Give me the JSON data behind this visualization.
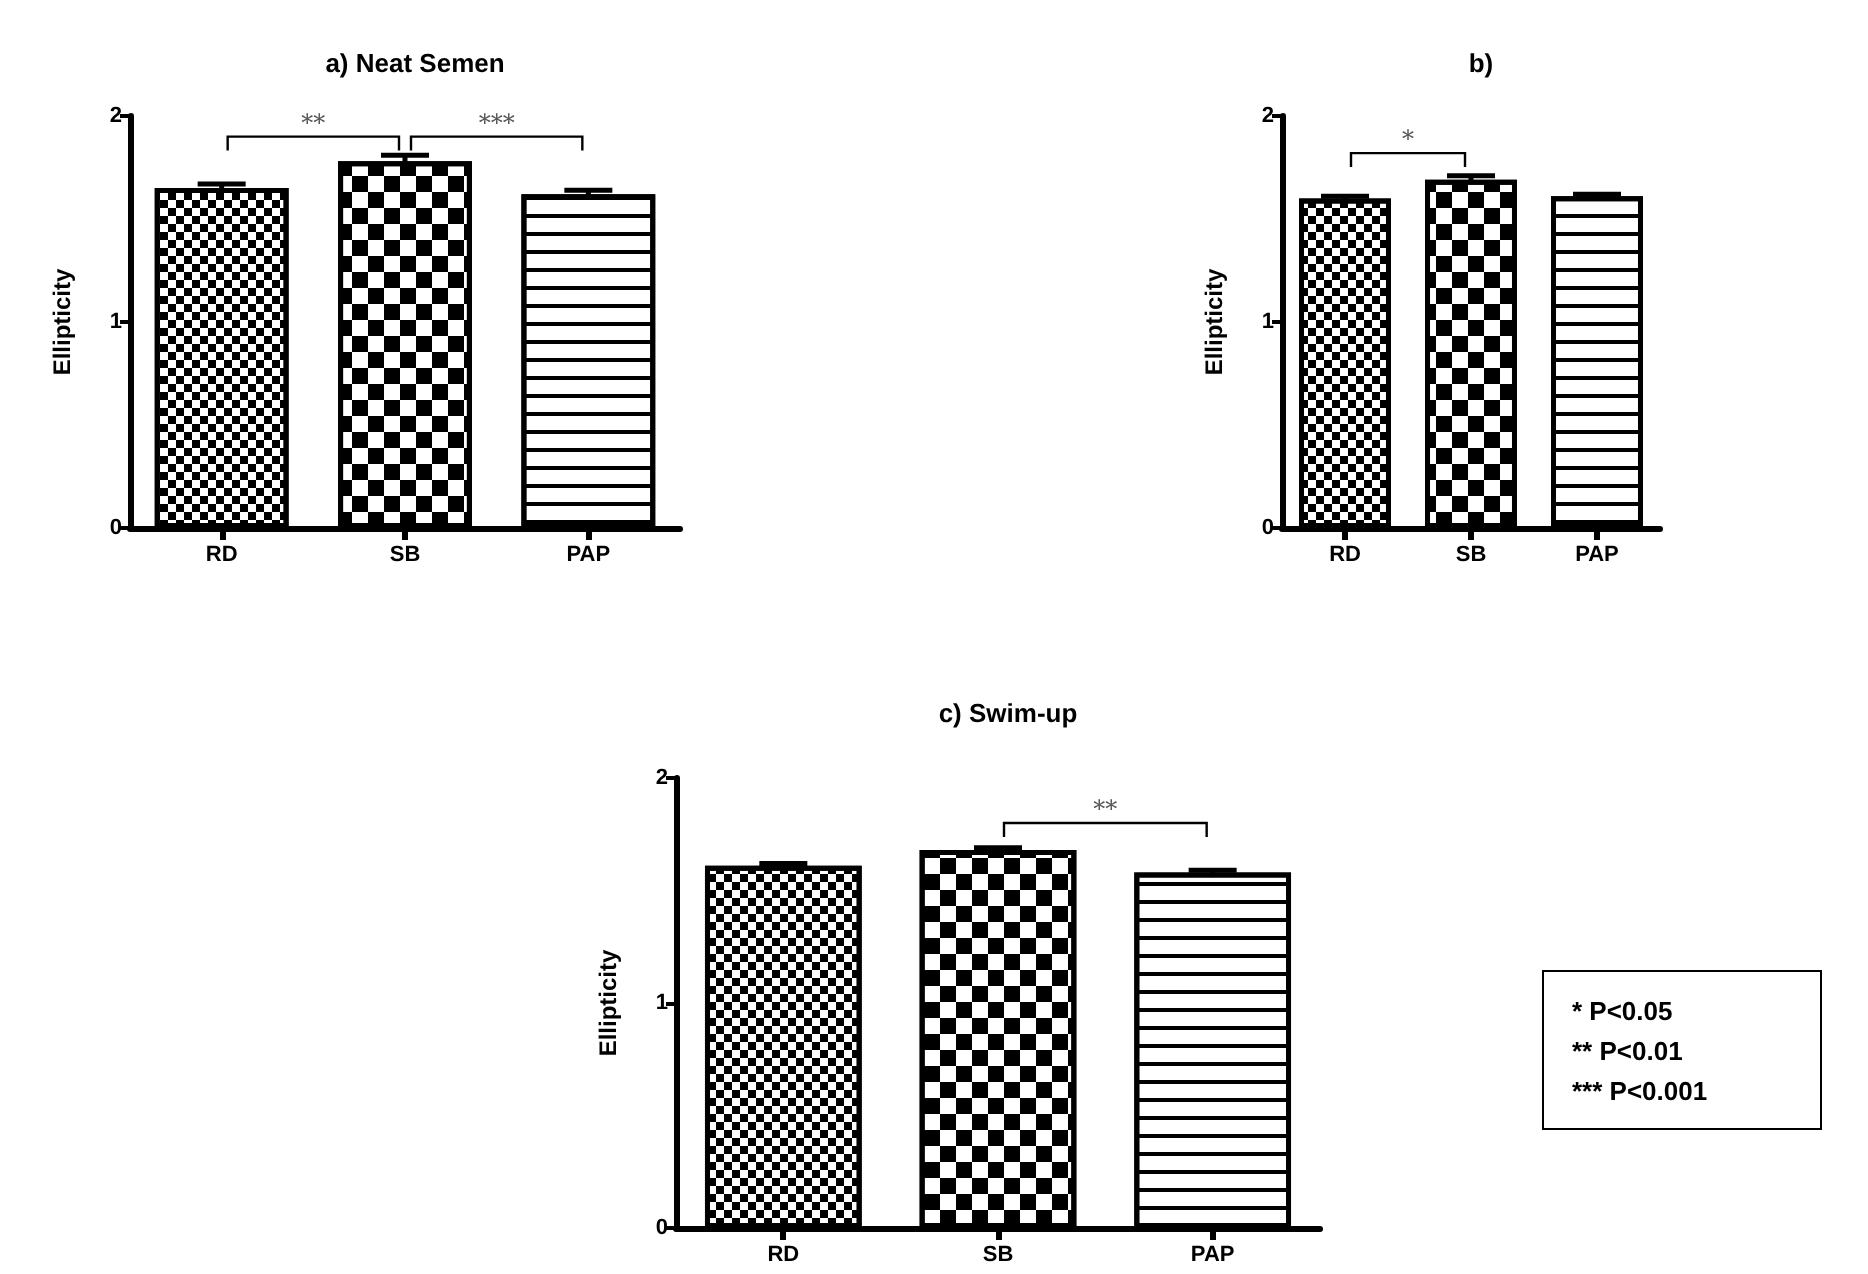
{
  "chart_data": [
    {
      "type": "bar",
      "title": "a) Neat Semen",
      "ylabel": "Ellipticity",
      "categories": [
        "RD",
        "SB",
        "PAP"
      ],
      "values": [
        1.65,
        1.78,
        1.62
      ],
      "errors": [
        0.02,
        0.03,
        0.02
      ],
      "ylim": [
        0,
        2
      ],
      "yticks": [
        0,
        1,
        2
      ],
      "annotations": [
        "**",
        "***"
      ]
    },
    {
      "type": "bar",
      "title": "b)",
      "ylabel": "Ellipticity",
      "categories": [
        "RD",
        "SB",
        "PAP"
      ],
      "values": [
        1.6,
        1.69,
        1.61
      ],
      "errors": [
        0.01,
        0.02,
        0.01
      ],
      "ylim": [
        0,
        2
      ],
      "yticks": [
        0,
        1,
        2
      ],
      "annotations": [
        "*"
      ]
    },
    {
      "type": "bar",
      "title": "c) Swim-up",
      "ylabel": "Ellipticity",
      "categories": [
        "RD",
        "SB",
        "PAP"
      ],
      "values": [
        1.61,
        1.68,
        1.58
      ],
      "errors": [
        0.01,
        0.01,
        0.01
      ],
      "ylim": [
        0,
        2
      ],
      "yticks": [
        0,
        1,
        2
      ],
      "annotations": [
        "**"
      ]
    },
    {
      "type": "other",
      "annotations": [
        "* P<0.05",
        "** P<0.01",
        "*** P<0.001"
      ]
    }
  ]
}
